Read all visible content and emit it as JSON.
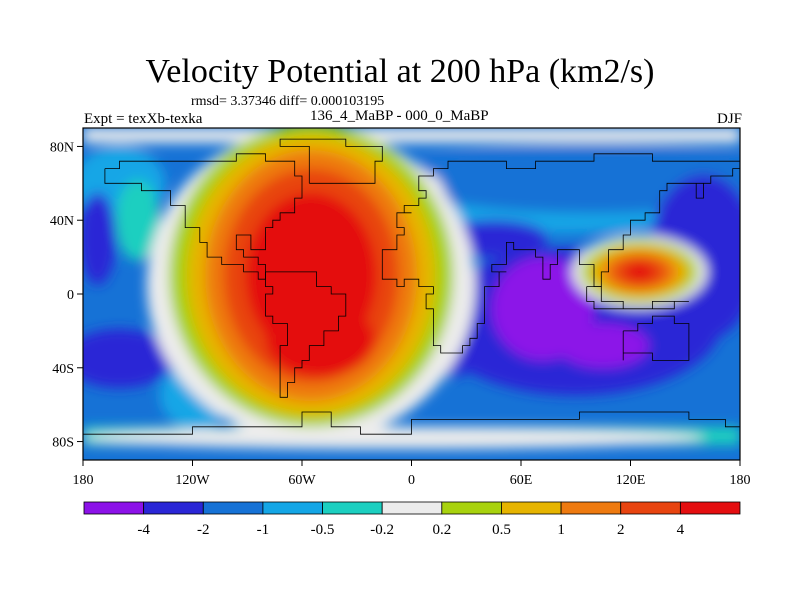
{
  "chart_data": {
    "type": "heatmap",
    "title": "Velocity Potential at 200 hPa (km2/s)",
    "stats_text": "rmsd= 3.37346 diff= 0.000103195",
    "experiment_label": "Expt = texXb-texka",
    "case_label": "136_4_MaBP - 000_0_MaBP",
    "season": "DJF",
    "xlabel": "",
    "ylabel": "",
    "xlim": [
      -180,
      180
    ],
    "ylim": [
      -90,
      90
    ],
    "x_ticks": [
      {
        "value": -180,
        "label": "180"
      },
      {
        "value": -120,
        "label": "120W"
      },
      {
        "value": -60,
        "label": "60W"
      },
      {
        "value": 0,
        "label": "0"
      },
      {
        "value": 60,
        "label": "60E"
      },
      {
        "value": 120,
        "label": "120E"
      },
      {
        "value": 180,
        "label": "180"
      }
    ],
    "y_ticks": [
      {
        "value": 80,
        "label": "80N"
      },
      {
        "value": 40,
        "label": "40N"
      },
      {
        "value": 0,
        "label": "0"
      },
      {
        "value": -40,
        "label": "40S"
      },
      {
        "value": -80,
        "label": "80S"
      }
    ],
    "colorbar": {
      "levels": [
        "-4",
        "-2",
        "-1",
        "-0.5",
        "-0.2",
        "0.2",
        "0.5",
        "1",
        "2",
        "4"
      ],
      "colors": [
        "#8c12e8",
        "#2a26d6",
        "#1672d6",
        "#14a6e6",
        "#1ccfc0",
        "#ececec",
        "#a8d20e",
        "#e6b400",
        "#ee7a10",
        "#e84410",
        "#e40e10"
      ]
    },
    "features": [
      {
        "name": "western-hemisphere-positive-max",
        "lon": -55,
        "lat": 10,
        "value": 4.5
      },
      {
        "name": "indian-ocean-negative-center",
        "lon": 70,
        "lat": -10,
        "value": -4.2
      },
      {
        "name": "asian-positive-cell",
        "lon": 125,
        "lat": 12,
        "value": 4.2
      },
      {
        "name": "pacific-negative-band",
        "lon": 150,
        "lat": -20,
        "value": -2.5
      }
    ]
  }
}
